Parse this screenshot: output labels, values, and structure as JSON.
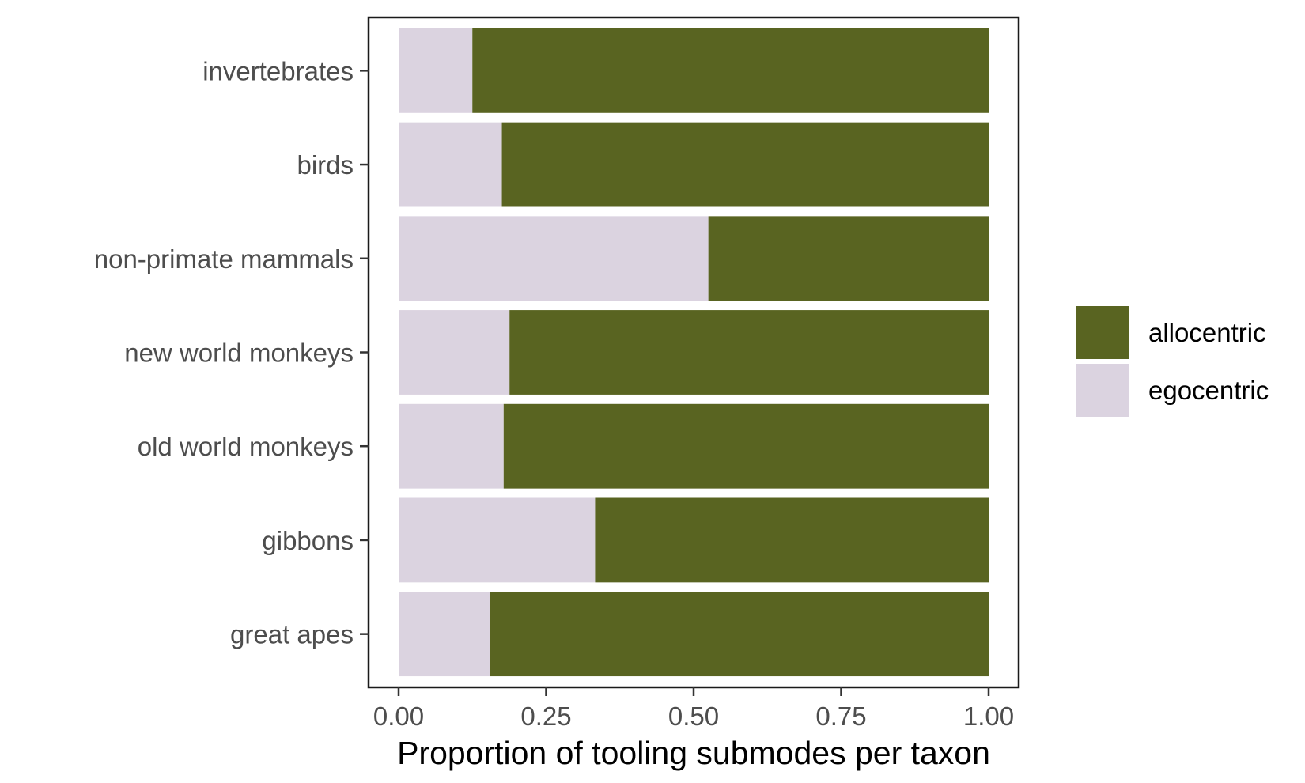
{
  "chart_data": {
    "type": "bar",
    "orientation": "horizontal",
    "stacked": true,
    "categories": [
      "invertebrates",
      "birds",
      "non-primate mammals",
      "new world monkeys",
      "old world monkeys",
      "gibbons",
      "great apes"
    ],
    "series": [
      {
        "name": "egocentric",
        "color": "#dbd3e0",
        "values": [
          0.125,
          0.175,
          0.525,
          0.188,
          0.178,
          0.333,
          0.155
        ]
      },
      {
        "name": "allocentric",
        "color": "#596421",
        "values": [
          0.875,
          0.825,
          0.475,
          0.812,
          0.822,
          0.667,
          0.845
        ]
      }
    ],
    "xlabel": "Proportion of tooling submodes per taxon",
    "ylabel": "",
    "title": "",
    "xlim": [
      0,
      1
    ],
    "xticks": [
      {
        "value": 0,
        "label": "0.00"
      },
      {
        "value": 0.25,
        "label": "0.25"
      },
      {
        "value": 0.5,
        "label": "0.50"
      },
      {
        "value": 0.75,
        "label": "0.75"
      },
      {
        "value": 1,
        "label": "1.00"
      }
    ],
    "grid": false,
    "legend": {
      "position": "right",
      "entries": [
        {
          "label": "allocentric",
          "color": "#596421"
        },
        {
          "label": "egocentric",
          "color": "#dbd3e0"
        }
      ]
    }
  }
}
